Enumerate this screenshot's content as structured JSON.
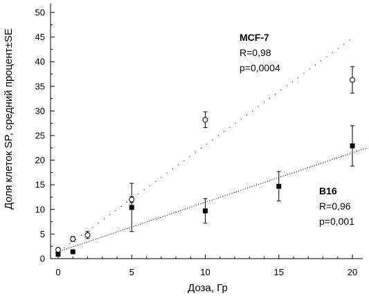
{
  "chart_data": {
    "type": "scatter",
    "xlabel": "Доза, Гр",
    "ylabel": "Доля клеток SP, средний процент±SE",
    "xlim": [
      -0.5,
      21
    ],
    "ylim": [
      0,
      52
    ],
    "x_ticks": [
      0,
      5,
      10,
      15,
      20
    ],
    "y_ticks": [
      0,
      5,
      10,
      15,
      20,
      25,
      30,
      35,
      40,
      45,
      50
    ],
    "grid": false,
    "series": [
      {
        "name": "MCF-7",
        "marker": "open-circle",
        "x": [
          0,
          1,
          2,
          5,
          10,
          20
        ],
        "y": [
          1.8,
          4.0,
          4.8,
          12.0,
          28.2,
          36.3
        ],
        "err": [
          0.4,
          0.5,
          0.7,
          0.6,
          1.6,
          2.7
        ],
        "fit_line": {
          "style": "sparse-dotted",
          "x": [
            0,
            20
          ],
          "y": [
            1.3,
            44.8
          ]
        },
        "annotation": [
          "MCF-7",
          "R=0,98",
          "p=0,0004"
        ]
      },
      {
        "name": "B16",
        "marker": "filled-square",
        "x": [
          0,
          1,
          5,
          10,
          15,
          20
        ],
        "y": [
          0.9,
          1.4,
          10.4,
          9.7,
          14.7,
          22.9
        ],
        "err": [
          0.3,
          0.3,
          4.9,
          2.5,
          3.0,
          4.1
        ],
        "fit_line": {
          "style": "dense-dotted",
          "x": [
            -0.2,
            21
          ],
          "y": [
            1.2,
            22.5
          ]
        },
        "annotation": [
          "B16",
          "R=0,96",
          "p=0,001"
        ]
      }
    ]
  },
  "colors": {
    "ink": "#000000",
    "background": "#ffffff"
  }
}
